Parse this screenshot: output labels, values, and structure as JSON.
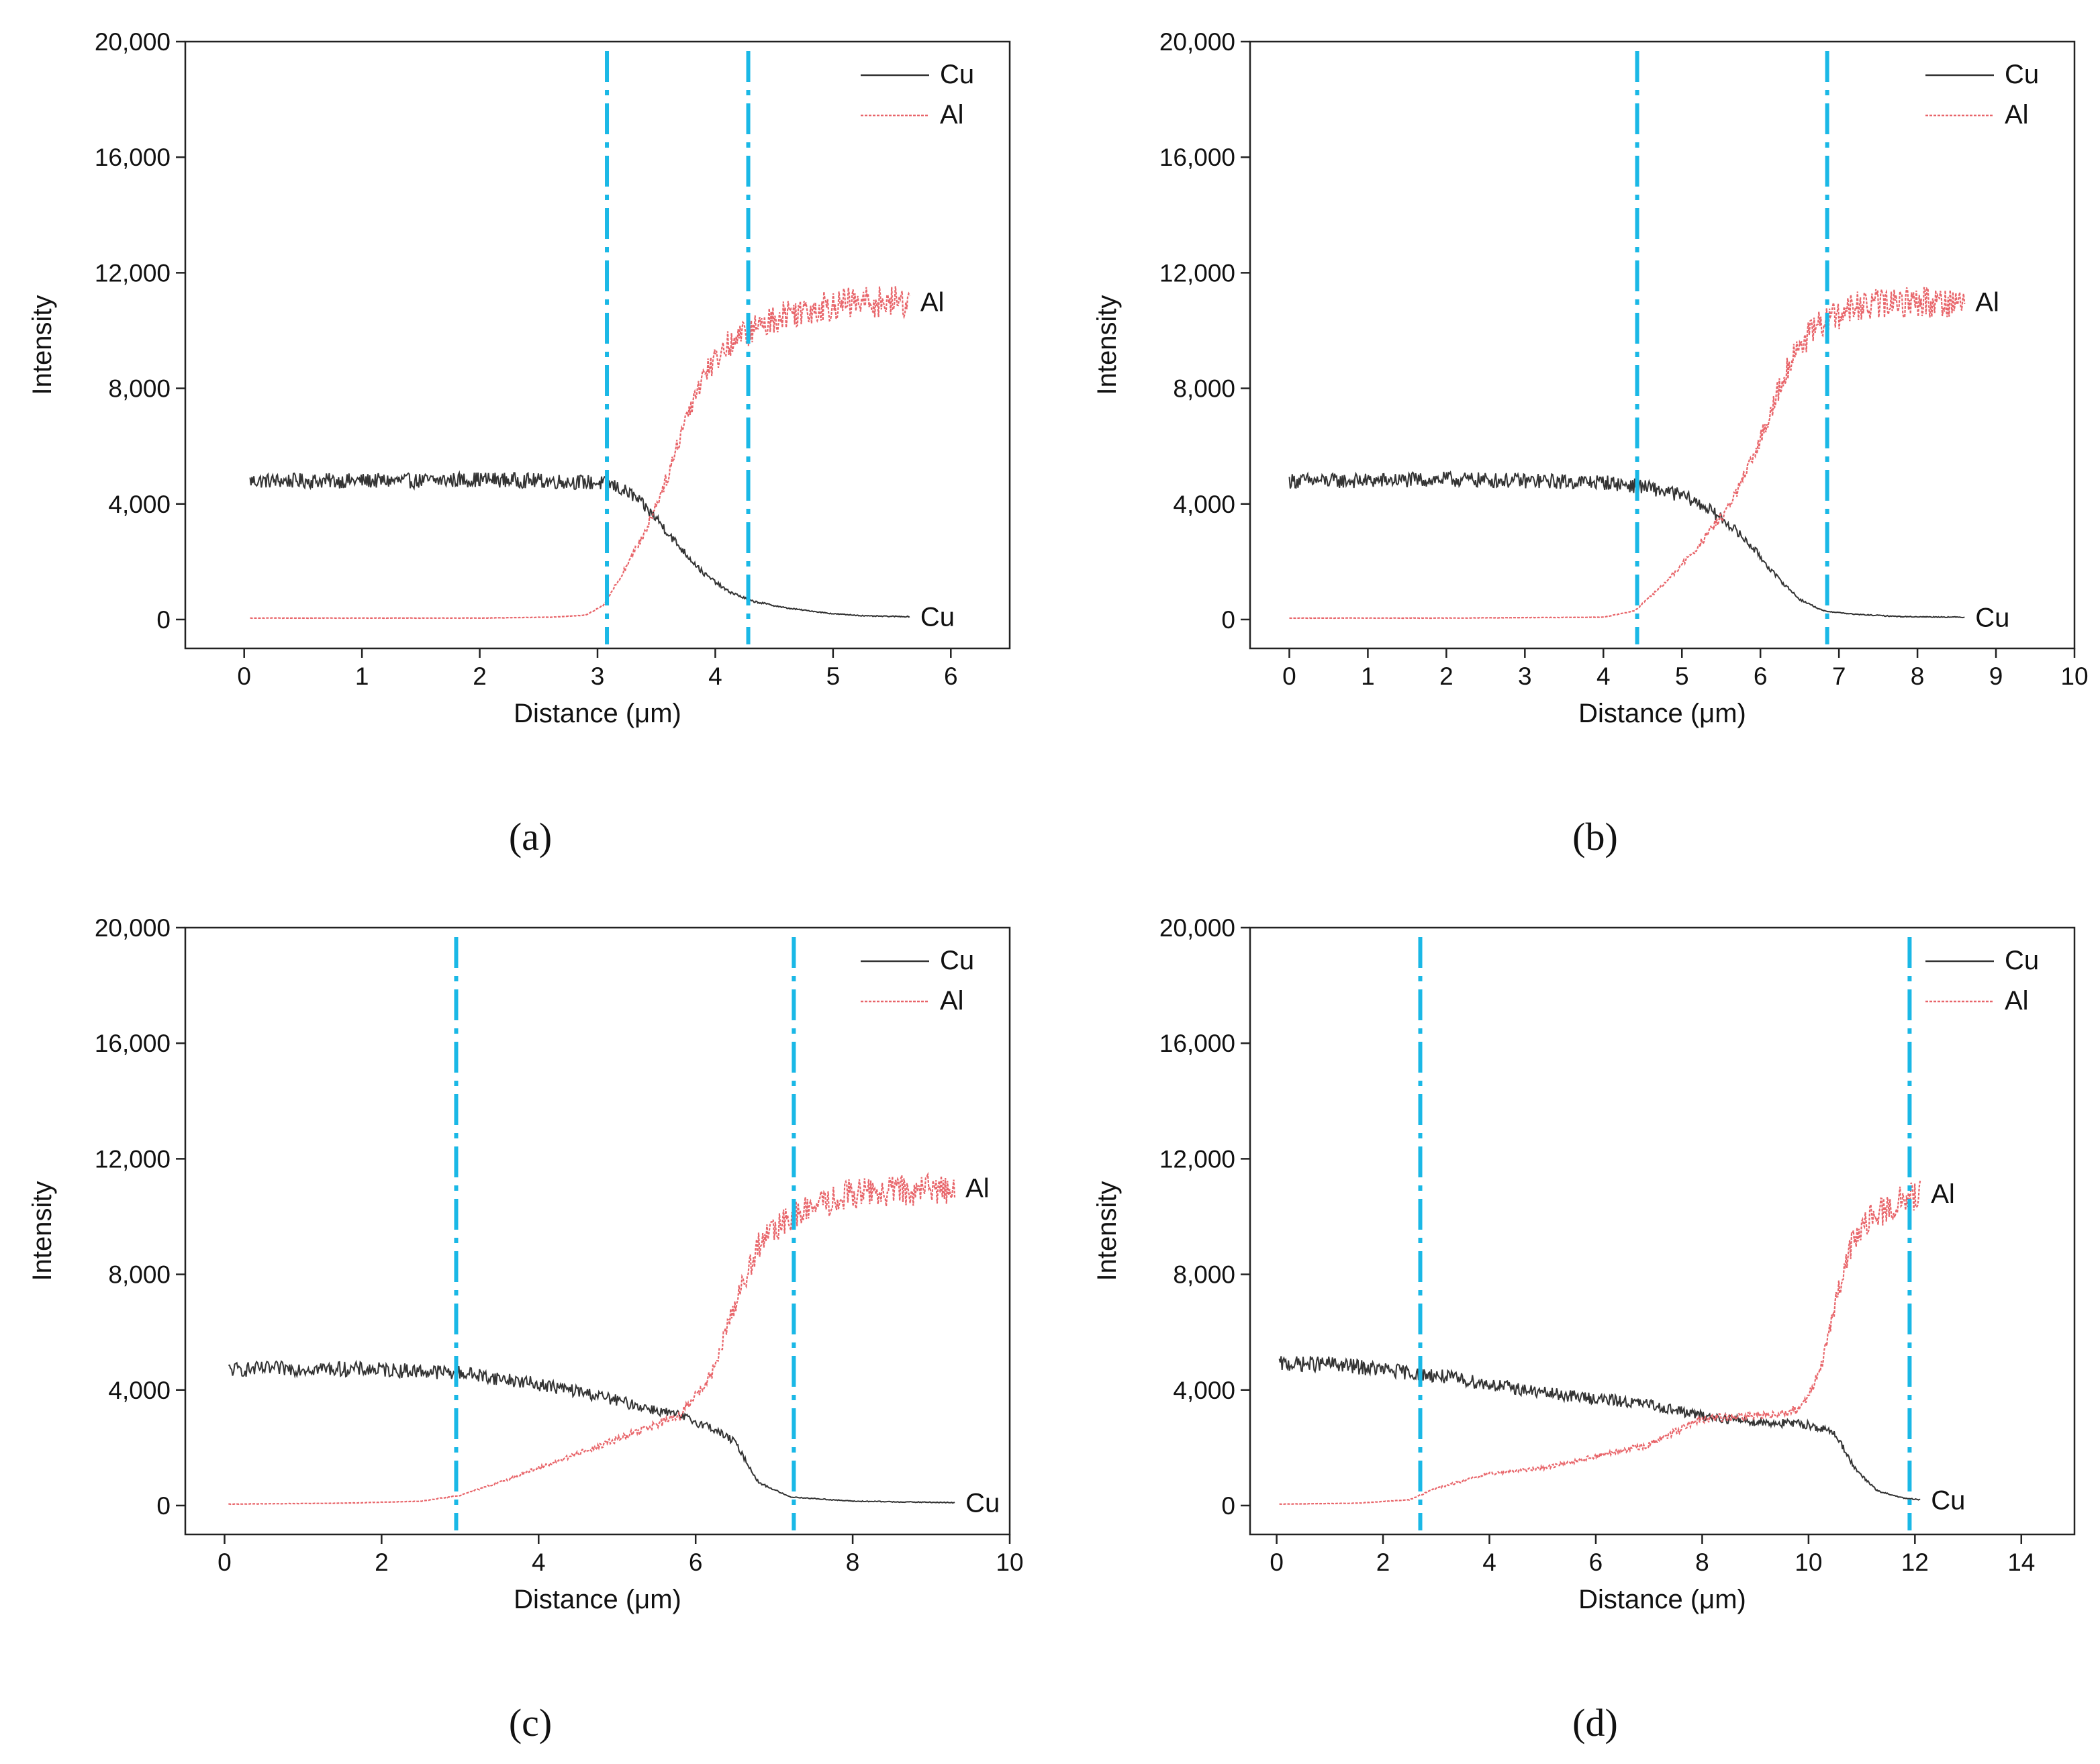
{
  "figure": {
    "panels": [
      {
        "label": "(a)",
        "chart_data": {
          "type": "line",
          "xlabel": "Distance (μm)",
          "ylabel": "Intensity",
          "xlim": [
            -0.5,
            6.5
          ],
          "ylim": [
            -1000,
            20000
          ],
          "xticks": [
            0,
            1,
            2,
            3,
            4,
            5,
            6
          ],
          "yticks": [
            0,
            4000,
            8000,
            12000,
            16000,
            20000
          ],
          "xtick_labels": [
            "0",
            "1",
            "2",
            "3",
            "4",
            "5",
            "6"
          ],
          "ytick_labels": [
            "0",
            "4,000",
            "8,000",
            "12,000",
            "16,000",
            "20,000"
          ],
          "legend": {
            "position": "top-right",
            "entries": [
              "Cu",
              "Al"
            ]
          },
          "vlines": [
            3.08,
            4.28
          ],
          "end_labels": [
            "Cu",
            "Al"
          ],
          "series": [
            {
              "name": "Cu",
              "color": "#333333",
              "style": "solid",
              "x": [
                0.05,
                0.5,
                1.0,
                1.5,
                2.0,
                2.5,
                2.9,
                3.1,
                3.3,
                3.5,
                3.7,
                3.9,
                4.1,
                4.3,
                4.6,
                5.0,
                5.3,
                5.65
              ],
              "y": [
                4800,
                4800,
                4800,
                4800,
                4850,
                4800,
                4750,
                4700,
                4300,
                3500,
                2500,
                1600,
                1000,
                650,
                400,
                200,
                120,
                100
              ]
            },
            {
              "name": "Al",
              "color": "#e8656a",
              "style": "dotted",
              "x": [
                0.05,
                1.0,
                2.0,
                2.6,
                2.9,
                3.05,
                3.2,
                3.4,
                3.6,
                3.75,
                3.9,
                4.1,
                4.3,
                4.6,
                5.0,
                5.3,
                5.65
              ],
              "y": [
                50,
                50,
                50,
                80,
                150,
                500,
                1500,
                3000,
                5000,
                7000,
                8500,
                9500,
                10000,
                10600,
                10900,
                11000,
                11000
              ]
            }
          ]
        }
      },
      {
        "label": "(b)",
        "chart_data": {
          "type": "line",
          "xlabel": "Distance (μm)",
          "ylabel": "Intensity",
          "xlim": [
            -0.5,
            10
          ],
          "ylim": [
            -1000,
            20000
          ],
          "xticks": [
            0,
            1,
            2,
            3,
            4,
            5,
            6,
            7,
            8,
            9,
            10
          ],
          "yticks": [
            0,
            4000,
            8000,
            12000,
            16000,
            20000
          ],
          "xtick_labels": [
            "0",
            "1",
            "2",
            "3",
            "4",
            "5",
            "6",
            "7",
            "8",
            "9",
            "10"
          ],
          "ytick_labels": [
            "0",
            "4,000",
            "8,000",
            "12,000",
            "16,000",
            "20,000"
          ],
          "legend": {
            "position": "top-right",
            "entries": [
              "Cu",
              "Al"
            ]
          },
          "vlines": [
            4.43,
            6.85
          ],
          "end_labels": [
            "Cu",
            "Al"
          ],
          "series": [
            {
              "name": "Cu",
              "color": "#333333",
              "style": "solid",
              "x": [
                0.0,
                1.0,
                2.0,
                3.0,
                4.0,
                4.5,
                5.0,
                5.3,
                5.6,
                5.9,
                6.2,
                6.5,
                6.8,
                7.2,
                7.8,
                8.6
              ],
              "y": [
                4800,
                4800,
                4850,
                4800,
                4750,
                4600,
                4300,
                3900,
                3300,
                2500,
                1500,
                700,
                300,
                180,
                100,
                80
              ]
            },
            {
              "name": "Al",
              "color": "#e8656a",
              "style": "dotted",
              "x": [
                0.0,
                2.0,
                4.0,
                4.4,
                4.8,
                5.2,
                5.6,
                5.9,
                6.1,
                6.3,
                6.5,
                6.8,
                7.2,
                7.8,
                8.6
              ],
              "y": [
                50,
                50,
                80,
                300,
                1300,
                2500,
                3900,
                5500,
                7000,
                8500,
                9500,
                10300,
                10800,
                11000,
                11000
              ]
            }
          ]
        }
      },
      {
        "label": "(c)",
        "chart_data": {
          "type": "line",
          "xlabel": "Distance (μm)",
          "ylabel": "Intensity",
          "xlim": [
            -0.5,
            10
          ],
          "ylim": [
            -1000,
            20000
          ],
          "xticks": [
            0,
            2,
            4,
            6,
            8,
            10
          ],
          "yticks": [
            0,
            4000,
            8000,
            12000,
            16000,
            20000
          ],
          "xtick_labels": [
            "0",
            "2",
            "4",
            "6",
            "8",
            "10"
          ],
          "ytick_labels": [
            "0",
            "4,000",
            "8,000",
            "12,000",
            "16,000",
            "20,000"
          ],
          "legend": {
            "position": "top-right",
            "entries": [
              "Cu",
              "Al"
            ]
          },
          "vlines": [
            2.95,
            7.25
          ],
          "end_labels": [
            "Cu",
            "Al"
          ],
          "series": [
            {
              "name": "Cu",
              "color": "#333333",
              "style": "solid",
              "x": [
                0.05,
                1.0,
                2.0,
                3.0,
                4.0,
                4.6,
                5.2,
                5.8,
                6.2,
                6.5,
                6.8,
                7.2,
                8.0,
                9.3
              ],
              "y": [
                4700,
                4750,
                4700,
                4600,
                4200,
                3900,
                3500,
                3100,
                2700,
                2200,
                800,
                300,
                150,
                100
              ]
            },
            {
              "name": "Al",
              "color": "#e8656a",
              "style": "dotted",
              "x": [
                0.05,
                1.5,
                2.5,
                3.0,
                3.5,
                4.0,
                5.0,
                5.8,
                6.2,
                6.5,
                6.8,
                7.2,
                8.0,
                9.3
              ],
              "y": [
                50,
                80,
                150,
                350,
                800,
                1300,
                2300,
                3100,
                4500,
                7000,
                9000,
                10000,
                10800,
                11000
              ]
            }
          ]
        }
      },
      {
        "label": "(d)",
        "chart_data": {
          "type": "line",
          "xlabel": "Distance (μm)",
          "ylabel": "Intensity",
          "xlim": [
            -0.5,
            15
          ],
          "ylim": [
            -1000,
            20000
          ],
          "xticks": [
            0,
            2,
            4,
            6,
            8,
            10,
            12,
            14
          ],
          "yticks": [
            0,
            4000,
            8000,
            12000,
            16000,
            20000
          ],
          "xtick_labels": [
            "0",
            "2",
            "4",
            "6",
            "8",
            "10",
            "12",
            "14"
          ],
          "ytick_labels": [
            "0",
            "4,000",
            "8,000",
            "12,000",
            "16,000",
            "20,000"
          ],
          "legend": {
            "position": "top-right",
            "entries": [
              "Cu",
              "Al"
            ]
          },
          "vlines": [
            2.7,
            11.9
          ],
          "end_labels": [
            "Cu",
            "Al"
          ],
          "series": [
            {
              "name": "Cu",
              "color": "#333333",
              "style": "solid",
              "x": [
                0.05,
                1.0,
                2.0,
                3.0,
                4.0,
                5.0,
                6.0,
                7.0,
                8.0,
                9.0,
                10.0,
                10.5,
                10.9,
                11.3,
                11.8,
                12.1
              ],
              "y": [
                4900,
                4900,
                4700,
                4500,
                4200,
                3900,
                3700,
                3500,
                3100,
                2900,
                2800,
                2500,
                1200,
                500,
                250,
                200
              ]
            },
            {
              "name": "Al",
              "color": "#e8656a",
              "style": "dotted",
              "x": [
                0.05,
                1.5,
                2.5,
                3.0,
                4.0,
                5.0,
                6.0,
                7.0,
                8.0,
                9.0,
                9.8,
                10.2,
                10.5,
                10.8,
                11.2,
                11.7,
                12.1
              ],
              "y": [
                50,
                80,
                200,
                600,
                1100,
                1300,
                1700,
                2100,
                3000,
                3100,
                3300,
                4500,
                7000,
                9000,
                10000,
                10500,
                10800
              ]
            }
          ]
        }
      }
    ]
  }
}
